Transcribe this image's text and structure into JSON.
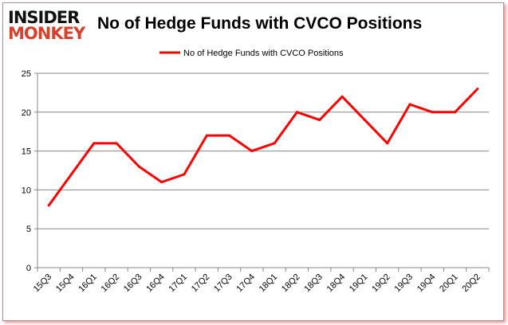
{
  "logo": {
    "line1": "INSIDER",
    "line2": "MONKEY"
  },
  "chart_data": {
    "type": "line",
    "title": "No of Hedge Funds with CVCO Positions",
    "categories": [
      "15Q3",
      "15Q4",
      "16Q1",
      "16Q2",
      "16Q3",
      "16Q4",
      "17Q1",
      "17Q2",
      "17Q3",
      "17Q4",
      "18Q1",
      "18Q2",
      "18Q3",
      "18Q4",
      "19Q1",
      "19Q2",
      "19Q3",
      "19Q4",
      "20Q1",
      "20Q2"
    ],
    "series": [
      {
        "name": "No of Hedge Funds with CVCO Positions",
        "color": "#ff0000",
        "values": [
          8,
          12,
          16,
          16,
          13,
          11,
          12,
          17,
          17,
          15,
          16,
          20,
          19,
          22,
          19,
          16,
          21,
          20,
          20,
          23
        ]
      }
    ],
    "ylim": [
      0,
      25
    ],
    "yticks": [
      0,
      5,
      10,
      15,
      20,
      25
    ],
    "grid": true,
    "legend": "top"
  }
}
